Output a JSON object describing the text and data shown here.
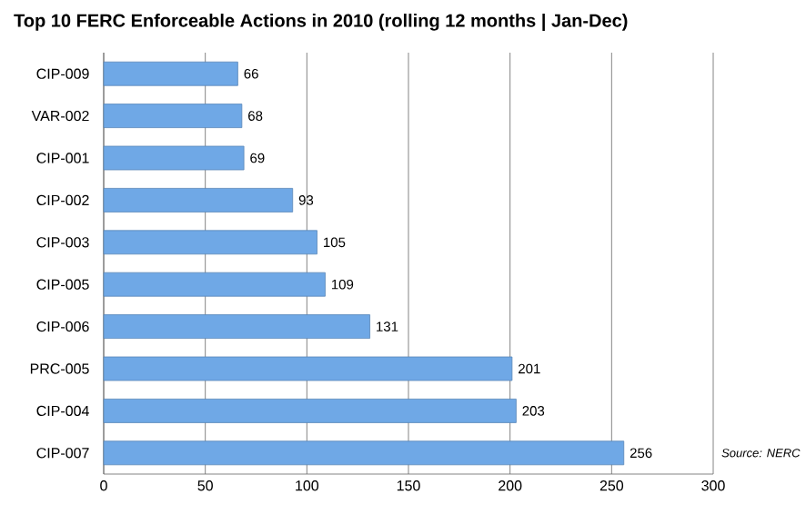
{
  "chart_data": {
    "type": "bar",
    "orientation": "horizontal",
    "title": "Top 10 FERC Enforceable Actions in 2010 (rolling 12 months | Jan-Dec)",
    "categories": [
      "CIP-009",
      "VAR-002",
      "CIP-001",
      "CIP-002",
      "CIP-003",
      "CIP-005",
      "CIP-006",
      "PRC-005",
      "CIP-004",
      "CIP-007"
    ],
    "values": [
      66,
      68,
      69,
      93,
      105,
      109,
      131,
      201,
      203,
      256
    ],
    "color": "#6fa8e6",
    "xlim": [
      0,
      300
    ],
    "xticks": [
      0,
      50,
      100,
      150,
      200,
      250,
      300
    ],
    "grid": "x",
    "data_labels": true,
    "annotations": [
      "Source: NERC"
    ]
  }
}
